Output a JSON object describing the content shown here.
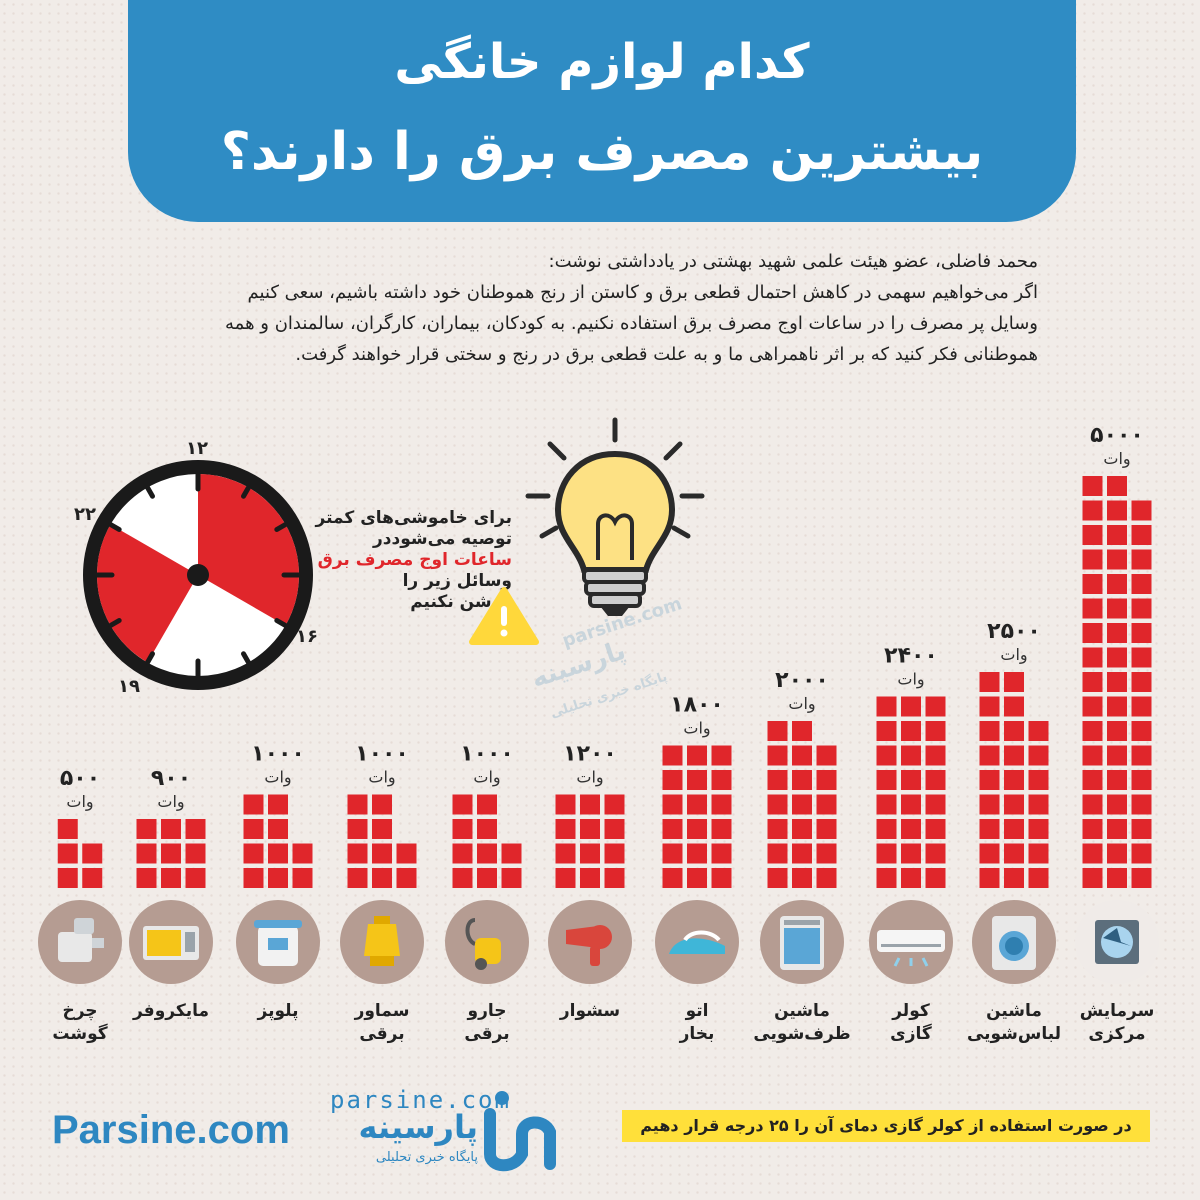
{
  "header": {
    "title_line1": "کدام لوازم خانگی",
    "title_line2": "بیشترین مصرف برق را دارند؟"
  },
  "intro": {
    "line1": "محمد فاضلی، عضو هیئت علمی شهید بهشتی در یادداشتی نوشت:",
    "line2": "اگر می‌خواهیم سهمی در کاهش احتمال قطعی برق و کاستن از رنج هموطنان خود داشته باشیم، سعی کنیم",
    "line3": "وسایل پر مصرف را در ساعات اوج مصرف برق استفاده نکنیم. به کودکان، بیماران، کارگران، سالمندان و همه",
    "line4": "هموطنانی فکر کنید که بر اثر ناهمراهی ما و به علت قطعی برق در رنج و سختی قرار خواهند گرفت."
  },
  "clock": {
    "labels": [
      "۱۲",
      "۲۲",
      "۱۶",
      "۱۹"
    ],
    "peak_ranges": [
      [
        12,
        16
      ],
      [
        19,
        22
      ]
    ]
  },
  "note": {
    "line1": "برای خاموشی‌های کمتر",
    "line2": "توصیه می‌شوددر",
    "line3_highlight": "ساعات اوج مصرف برق",
    "line4": "وسائل زیر را",
    "line5": "روشن نکنیم"
  },
  "colors": {
    "header": "#2f8cc4",
    "bar": "#e0262b",
    "icon_circle": "#b59c92",
    "tip_bg": "#ffe03a",
    "brand": "#2e87c1"
  },
  "chart_data": {
    "type": "bar",
    "unit": "وات",
    "categories": [
      [
        "چرخ",
        "گوشت"
      ],
      [
        "مایکروفر"
      ],
      [
        "پلوپز"
      ],
      [
        "سماور",
        "برقی"
      ],
      [
        "جارو",
        "برقی"
      ],
      [
        "سشوار"
      ],
      [
        "اتو",
        "بخار"
      ],
      [
        "ماشین",
        "ظرف‌شویی"
      ],
      [
        "کولر",
        "گازی"
      ],
      [
        "ماشین",
        "لباس‌شویی"
      ],
      [
        "سرمایش",
        "مرکزی"
      ]
    ],
    "values": [
      500,
      900,
      1000,
      1000,
      1000,
      1200,
      1800,
      2000,
      2400,
      2500,
      5000
    ],
    "value_labels": [
      "۵۰۰",
      "۹۰۰",
      "۱۰۰۰",
      "۱۰۰۰",
      "۱۰۰۰",
      "۱۲۰۰",
      "۱۸۰۰",
      "۲۰۰۰",
      "۲۴۰۰",
      "۲۵۰۰",
      "۵۰۰۰"
    ],
    "icons": [
      "meat-grinder-icon",
      "microwave-icon",
      "rice-cooker-icon",
      "samovar-icon",
      "vacuum-cleaner-icon",
      "hair-dryer-icon",
      "steam-iron-icon",
      "dishwasher-icon",
      "air-conditioner-icon",
      "washing-machine-icon",
      "central-cooling-icon"
    ]
  },
  "watermark": {
    "url": "parsine.com",
    "name": "پارسینه",
    "sub": "پایگاه خبری تحلیلی"
  },
  "footer": {
    "brand": "Parsine.com",
    "logo_url": "parsine.com",
    "logo_name": "پارسینه",
    "logo_sub": "پایگاه خبری تحلیلی",
    "tip": "در صورت استفاده از کولر گازی دمای آن را ۲۵ درجه قرار دهیم"
  }
}
